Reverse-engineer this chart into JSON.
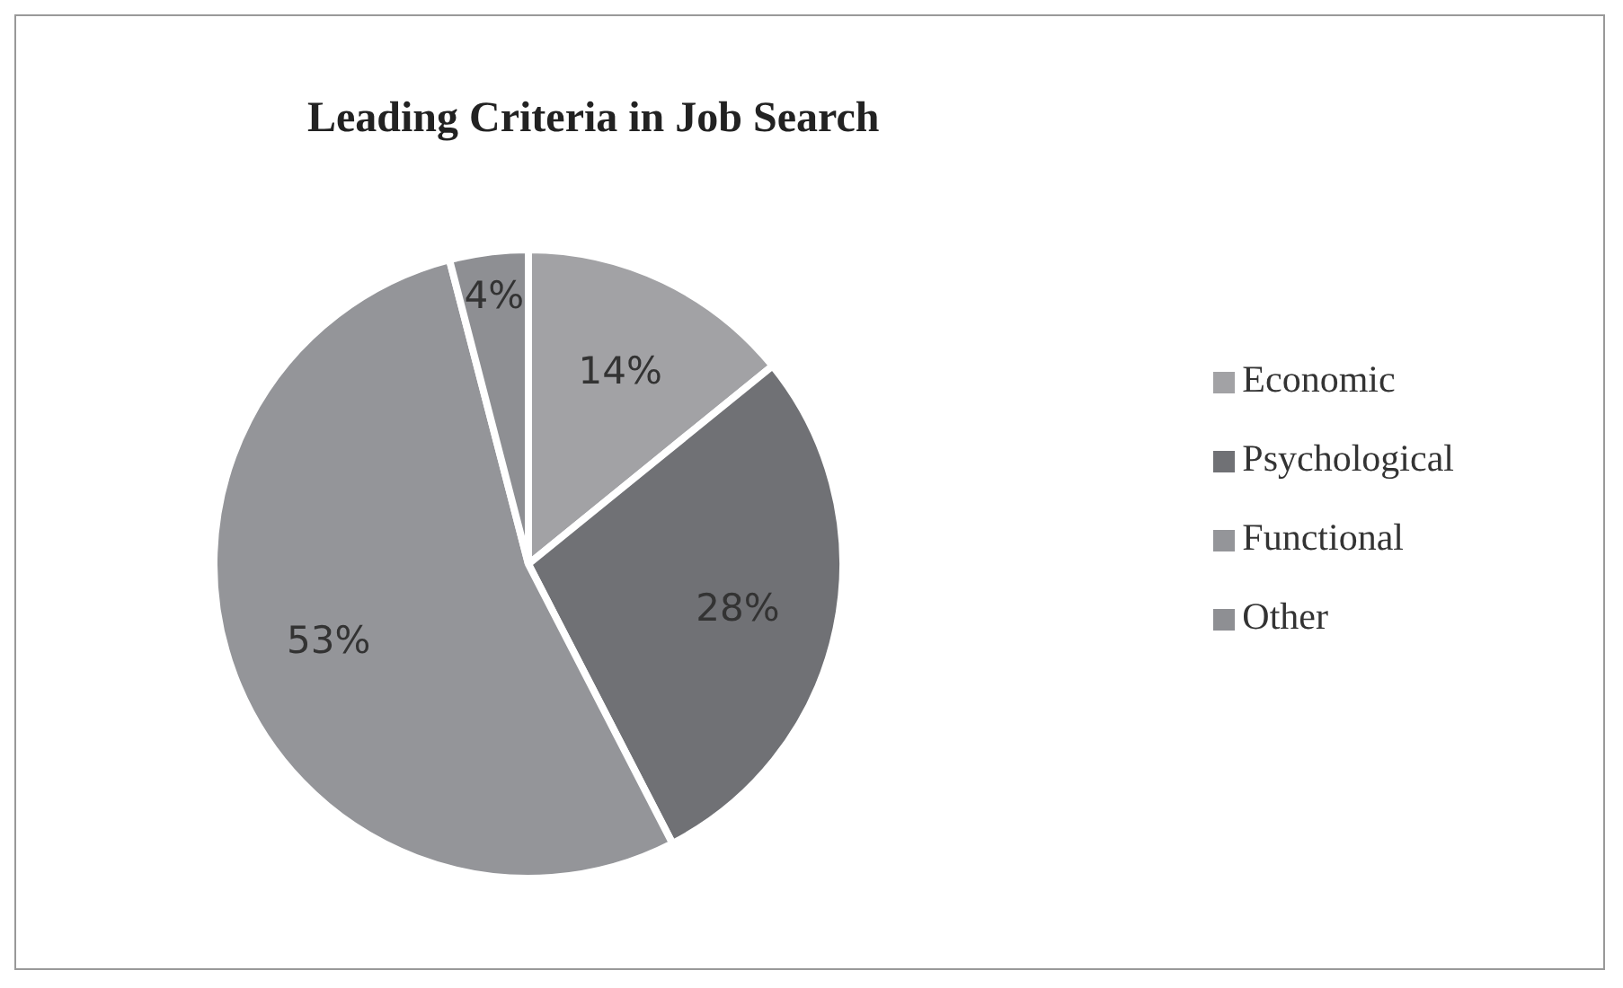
{
  "chart_data": {
    "type": "pie",
    "title": "Leading Criteria in Job Search",
    "categories": [
      "Economic",
      "Psychological",
      "Functional",
      "Other"
    ],
    "values": [
      14,
      28,
      53,
      4
    ],
    "colors": [
      "#a2a2a5",
      "#707175",
      "#949599",
      "#8e8f93"
    ],
    "value_labels": [
      "14%",
      "28%",
      "53%",
      "4%"
    ],
    "legend": "right"
  }
}
